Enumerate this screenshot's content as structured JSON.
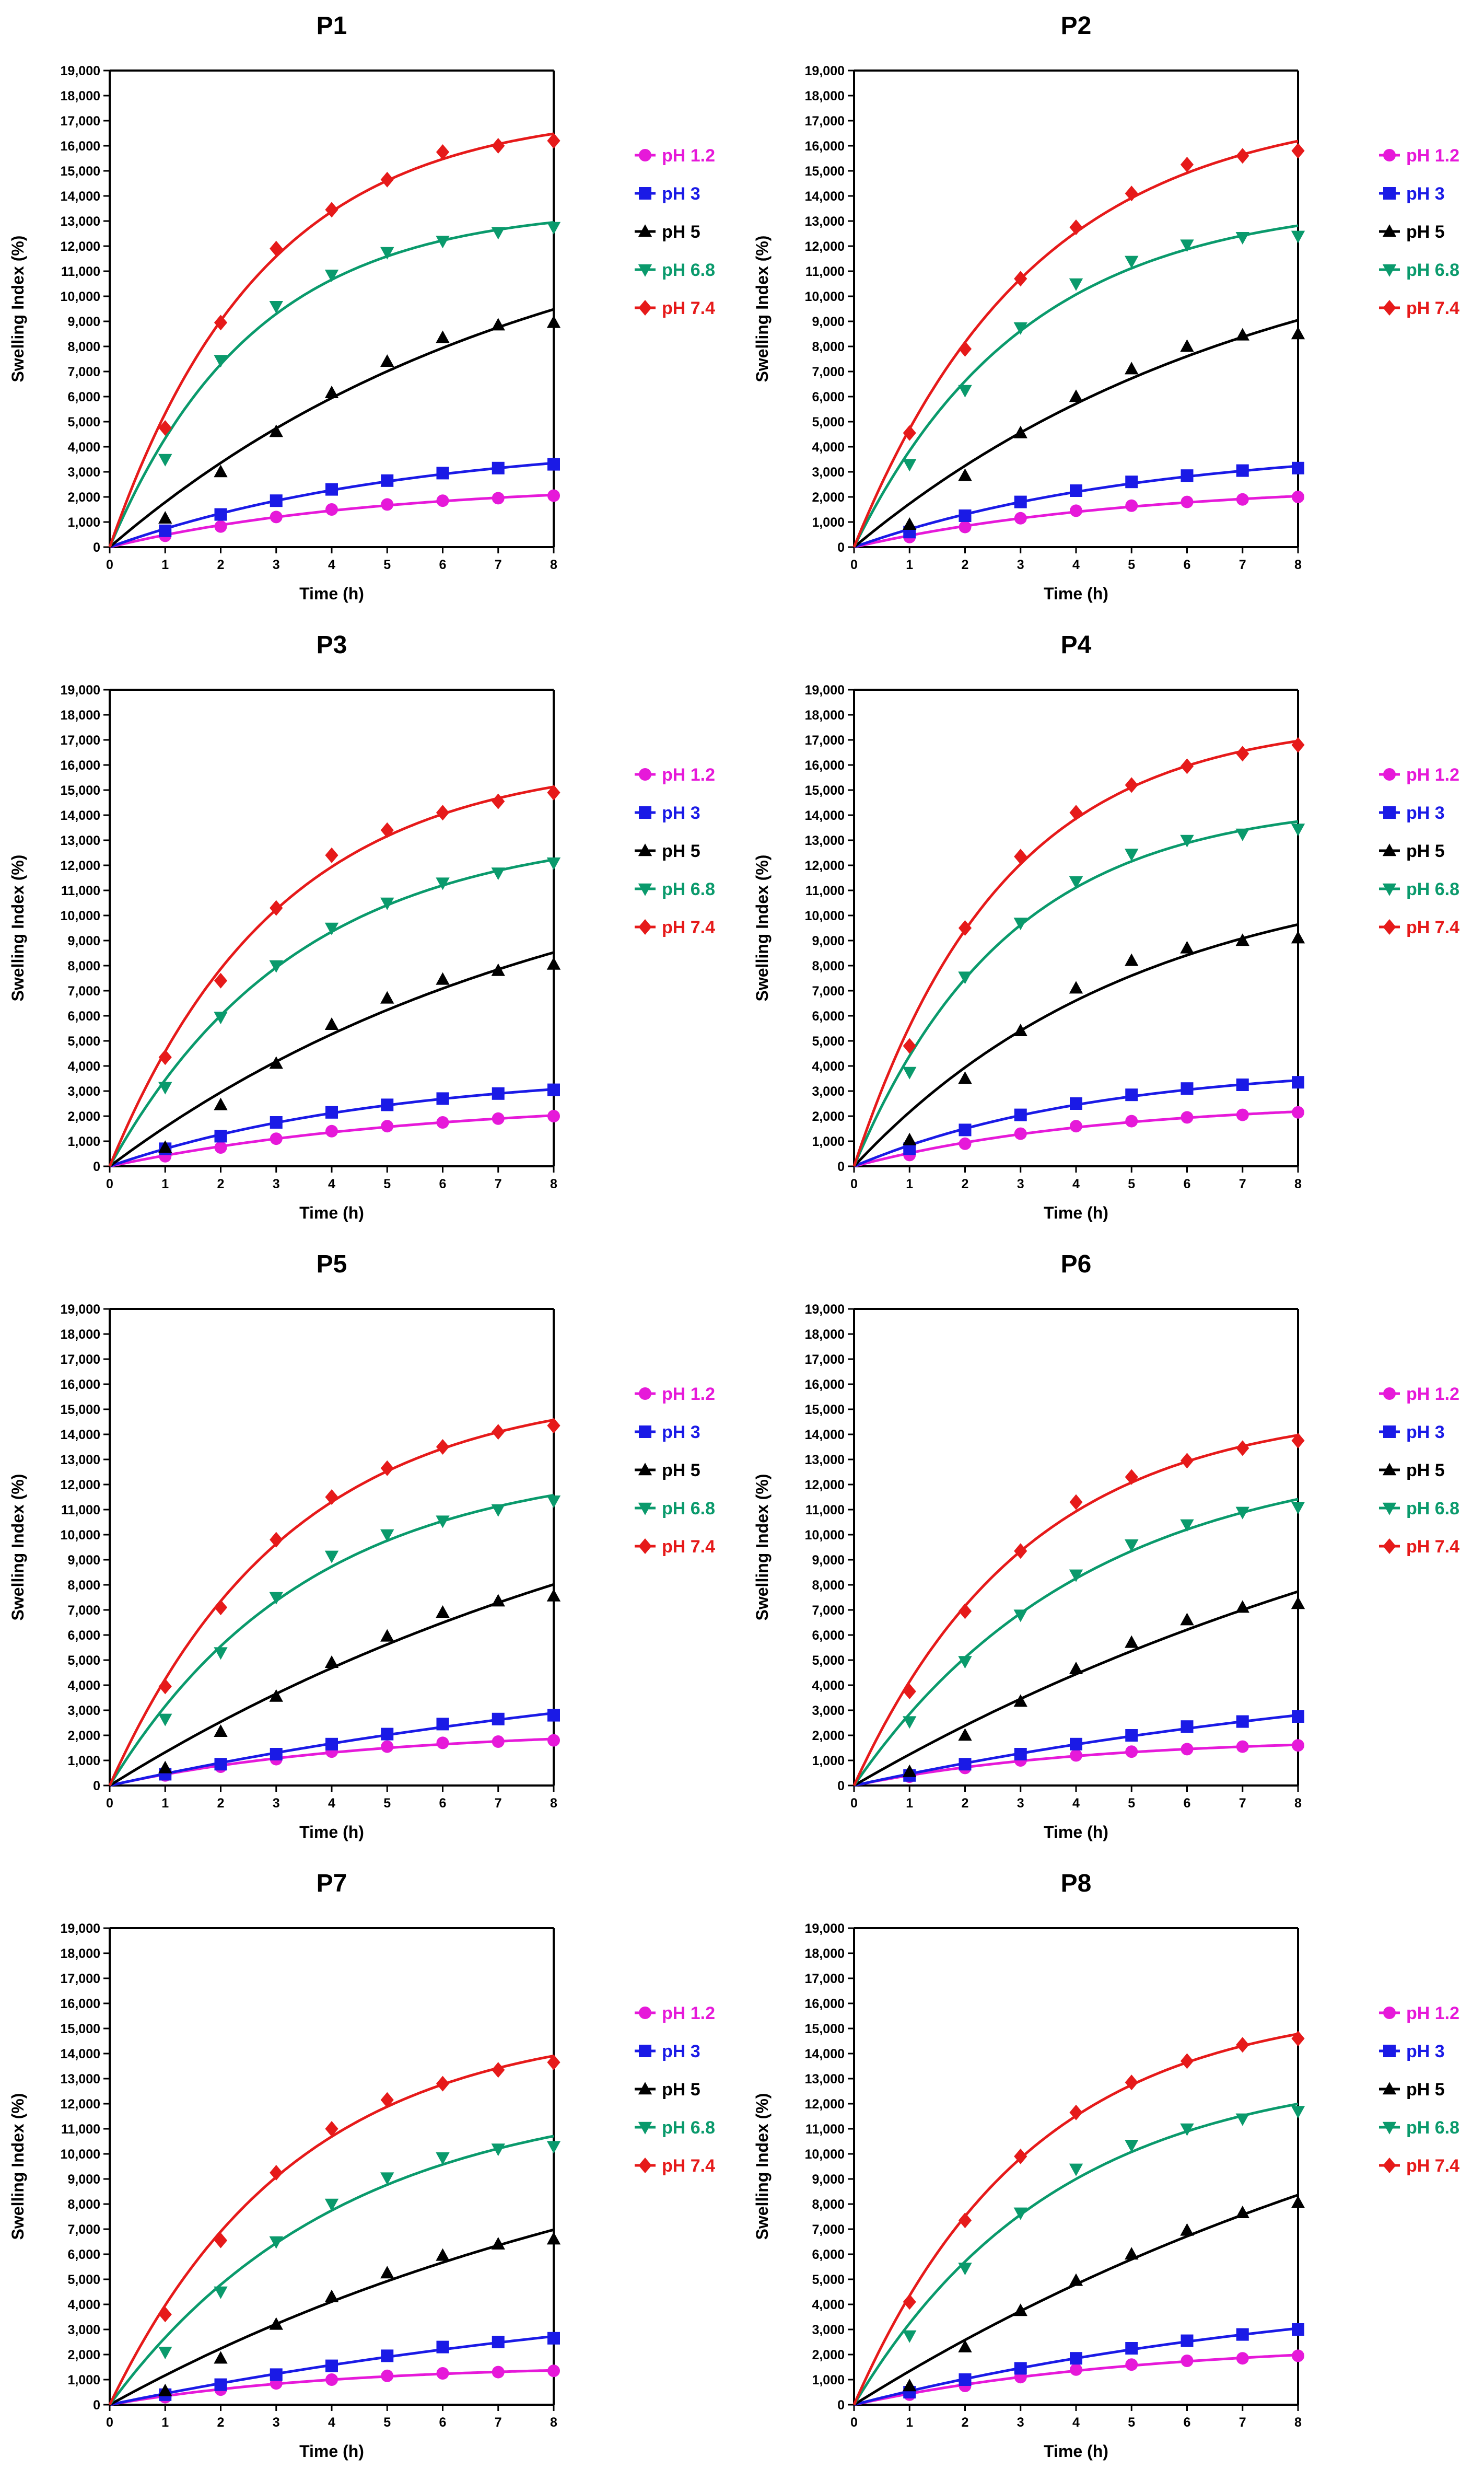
{
  "chart_data": [
    {
      "type": "scatter",
      "title": "P1",
      "xlabel": "Time (h)",
      "ylabel": "Swelling Index (%)",
      "xlim": [
        0,
        8
      ],
      "ylim": [
        0,
        19000
      ],
      "x": [
        0,
        1,
        2,
        3,
        4,
        5,
        6,
        7,
        8
      ],
      "series": [
        {
          "name": "pH 1.2",
          "values": [
            0,
            450,
            820,
            1200,
            1500,
            1700,
            1850,
            1950,
            2050
          ]
        },
        {
          "name": "pH 3",
          "values": [
            0,
            650,
            1300,
            1850,
            2300,
            2650,
            2950,
            3150,
            3300
          ]
        },
        {
          "name": "pH 5",
          "values": [
            0,
            1150,
            3000,
            4600,
            6150,
            7400,
            8350,
            8850,
            8950
          ]
        },
        {
          "name": "pH 6.8",
          "values": [
            0,
            3500,
            7450,
            9600,
            10850,
            11750,
            12200,
            12550,
            12750
          ]
        },
        {
          "name": "pH 7.4",
          "values": [
            0,
            4750,
            8950,
            11900,
            13450,
            14650,
            15750,
            16000,
            16200
          ]
        }
      ]
    },
    {
      "type": "scatter",
      "title": "P2",
      "xlabel": "Time (h)",
      "ylabel": "Swelling Index (%)",
      "xlim": [
        0,
        8
      ],
      "ylim": [
        0,
        19000
      ],
      "x": [
        0,
        1,
        2,
        3,
        4,
        5,
        6,
        7,
        8
      ],
      "series": [
        {
          "name": "pH 1.2",
          "values": [
            0,
            400,
            800,
            1150,
            1450,
            1650,
            1800,
            1900,
            2000
          ]
        },
        {
          "name": "pH 3",
          "values": [
            0,
            600,
            1250,
            1800,
            2250,
            2600,
            2850,
            3050,
            3150
          ]
        },
        {
          "name": "pH 5",
          "values": [
            0,
            900,
            2850,
            4550,
            6000,
            7100,
            8000,
            8450,
            8500
          ]
        },
        {
          "name": "pH 6.8",
          "values": [
            0,
            3300,
            6250,
            8750,
            10500,
            11400,
            12050,
            12350,
            12400
          ]
        },
        {
          "name": "pH 7.4",
          "values": [
            0,
            4550,
            7900,
            10700,
            12750,
            14100,
            15250,
            15600,
            15800
          ]
        }
      ]
    },
    {
      "type": "scatter",
      "title": "P3",
      "xlabel": "Time (h)",
      "ylabel": "Swelling Index (%)",
      "xlim": [
        0,
        8
      ],
      "ylim": [
        0,
        19000
      ],
      "x": [
        0,
        1,
        2,
        3,
        4,
        5,
        6,
        7,
        8
      ],
      "series": [
        {
          "name": "pH 1.2",
          "values": [
            0,
            400,
            750,
            1100,
            1400,
            1600,
            1750,
            1900,
            2000
          ]
        },
        {
          "name": "pH 3",
          "values": [
            0,
            700,
            1200,
            1750,
            2150,
            2450,
            2700,
            2900,
            3050
          ]
        },
        {
          "name": "pH 5",
          "values": [
            0,
            750,
            2450,
            4100,
            5650,
            6700,
            7450,
            7800,
            8050
          ]
        },
        {
          "name": "pH 6.8",
          "values": [
            0,
            3150,
            5950,
            8000,
            9500,
            10500,
            11300,
            11700,
            12100
          ]
        },
        {
          "name": "pH 7.4",
          "values": [
            0,
            4350,
            7400,
            10300,
            12400,
            13400,
            14100,
            14550,
            14900
          ]
        }
      ]
    },
    {
      "type": "scatter",
      "title": "P4",
      "xlabel": "Time (h)",
      "ylabel": "Swelling Index (%)",
      "xlim": [
        0,
        8
      ],
      "ylim": [
        0,
        19000
      ],
      "x": [
        0,
        1,
        2,
        3,
        4,
        5,
        6,
        7,
        8
      ],
      "series": [
        {
          "name": "pH 1.2",
          "values": [
            0,
            450,
            900,
            1300,
            1600,
            1800,
            1950,
            2050,
            2150
          ]
        },
        {
          "name": "pH 3",
          "values": [
            0,
            700,
            1450,
            2050,
            2500,
            2850,
            3100,
            3250,
            3350
          ]
        },
        {
          "name": "pH 5",
          "values": [
            0,
            1050,
            3500,
            5400,
            7100,
            8200,
            8700,
            9000,
            9100
          ]
        },
        {
          "name": "pH 6.8",
          "values": [
            0,
            3750,
            7550,
            9700,
            11350,
            12450,
            13000,
            13250,
            13450
          ]
        },
        {
          "name": "pH 7.4",
          "values": [
            0,
            4800,
            9500,
            12350,
            14100,
            15200,
            15950,
            16450,
            16800
          ]
        }
      ]
    },
    {
      "type": "scatter",
      "title": "P5",
      "xlabel": "Time (h)",
      "ylabel": "Swelling Index (%)",
      "xlim": [
        0,
        8
      ],
      "ylim": [
        0,
        19000
      ],
      "x": [
        0,
        1,
        2,
        3,
        4,
        5,
        6,
        7,
        8
      ],
      "series": [
        {
          "name": "pH 1.2",
          "values": [
            0,
            400,
            750,
            1050,
            1350,
            1550,
            1700,
            1750,
            1800
          ]
        },
        {
          "name": "pH 3",
          "values": [
            0,
            450,
            850,
            1250,
            1650,
            2050,
            2450,
            2650,
            2800
          ]
        },
        {
          "name": "pH 5",
          "values": [
            0,
            700,
            2150,
            3550,
            4900,
            5950,
            6900,
            7350,
            7550
          ]
        },
        {
          "name": "pH 6.8",
          "values": [
            0,
            2650,
            5300,
            7500,
            9150,
            10000,
            10550,
            11000,
            11350
          ]
        },
        {
          "name": "pH 7.4",
          "values": [
            0,
            3950,
            7100,
            9800,
            11500,
            12650,
            13500,
            14100,
            14350
          ]
        }
      ]
    },
    {
      "type": "scatter",
      "title": "P6",
      "xlabel": "Time (h)",
      "ylabel": "Swelling Index (%)",
      "xlim": [
        0,
        8
      ],
      "ylim": [
        0,
        19000
      ],
      "x": [
        0,
        1,
        2,
        3,
        4,
        5,
        6,
        7,
        8
      ],
      "series": [
        {
          "name": "pH 1.2",
          "values": [
            0,
            350,
            700,
            1000,
            1200,
            1350,
            1450,
            1550,
            1600
          ]
        },
        {
          "name": "pH 3",
          "values": [
            0,
            400,
            850,
            1250,
            1650,
            2000,
            2350,
            2550,
            2750
          ]
        },
        {
          "name": "pH 5",
          "values": [
            0,
            550,
            2000,
            3350,
            4650,
            5700,
            6600,
            7100,
            7250
          ]
        },
        {
          "name": "pH 6.8",
          "values": [
            0,
            2550,
            4950,
            6800,
            8400,
            9600,
            10400,
            10900,
            11100
          ]
        },
        {
          "name": "pH 7.4",
          "values": [
            0,
            3750,
            6950,
            9350,
            11300,
            12300,
            12950,
            13450,
            13750
          ]
        }
      ]
    },
    {
      "type": "scatter",
      "title": "P7",
      "xlabel": "Time (h)",
      "ylabel": "Swelling Index (%)",
      "xlim": [
        0,
        8
      ],
      "ylim": [
        0,
        19000
      ],
      "x": [
        0,
        1,
        2,
        3,
        4,
        5,
        6,
        7,
        8
      ],
      "series": [
        {
          "name": "pH 1.2",
          "values": [
            0,
            300,
            600,
            850,
            1000,
            1150,
            1250,
            1300,
            1350
          ]
        },
        {
          "name": "pH 3",
          "values": [
            0,
            400,
            800,
            1200,
            1550,
            1950,
            2300,
            2500,
            2650
          ]
        },
        {
          "name": "pH 5",
          "values": [
            0,
            550,
            1850,
            3200,
            4300,
            5250,
            5950,
            6400,
            6600
          ]
        },
        {
          "name": "pH 6.8",
          "values": [
            0,
            2100,
            4500,
            6500,
            8000,
            9050,
            9850,
            10200,
            10300
          ]
        },
        {
          "name": "pH 7.4",
          "values": [
            0,
            3600,
            6550,
            9250,
            11000,
            12150,
            12800,
            13350,
            13650
          ]
        }
      ]
    },
    {
      "type": "scatter",
      "title": "P8",
      "xlabel": "Time (h)",
      "ylabel": "Swelling Index (%)",
      "xlim": [
        0,
        8
      ],
      "ylim": [
        0,
        19000
      ],
      "x": [
        0,
        1,
        2,
        3,
        4,
        5,
        6,
        7,
        8
      ],
      "series": [
        {
          "name": "pH 1.2",
          "values": [
            0,
            400,
            750,
            1100,
            1400,
            1600,
            1750,
            1850,
            1950
          ]
        },
        {
          "name": "pH 3",
          "values": [
            0,
            500,
            1000,
            1450,
            1850,
            2250,
            2550,
            2800,
            3000
          ]
        },
        {
          "name": "pH 5",
          "values": [
            0,
            750,
            2300,
            3750,
            4950,
            6000,
            6950,
            7650,
            8050
          ]
        },
        {
          "name": "pH 6.8",
          "values": [
            0,
            2750,
            5450,
            7650,
            9400,
            10350,
            11000,
            11400,
            11700
          ]
        },
        {
          "name": "pH 7.4",
          "values": [
            0,
            4100,
            7350,
            9900,
            11650,
            12850,
            13700,
            14350,
            14600
          ]
        }
      ]
    }
  ],
  "series_style": [
    {
      "name": "pH 1.2",
      "color": "#e619d9",
      "marker": "circle"
    },
    {
      "name": "pH 3",
      "color": "#1a1ae6",
      "marker": "square"
    },
    {
      "name": "pH 5",
      "color": "#000000",
      "marker": "triangle-up"
    },
    {
      "name": "pH 6.8",
      "color": "#0a9a6c",
      "marker": "triangle-down"
    },
    {
      "name": "pH 7.4",
      "color": "#e61a1a",
      "marker": "diamond"
    }
  ],
  "y_ticks": [
    0,
    1000,
    2000,
    3000,
    4000,
    5000,
    6000,
    7000,
    8000,
    9000,
    10000,
    11000,
    12000,
    13000,
    14000,
    15000,
    16000,
    17000,
    18000,
    19000
  ],
  "y_tick_labels": [
    "0",
    "1,000",
    "2,000",
    "3,000",
    "4,000",
    "5,000",
    "6,000",
    "7,000",
    "8,000",
    "9,000",
    "10,000",
    "11,000",
    "12,000",
    "13,000",
    "14,000",
    "15,000",
    "16,000",
    "17,000",
    "18,000",
    "19,000"
  ],
  "x_ticks": [
    0,
    1,
    2,
    3,
    4,
    5,
    6,
    7,
    8
  ],
  "x_tick_labels": [
    "0",
    "1",
    "2",
    "3",
    "4",
    "5",
    "6",
    "7",
    "8"
  ]
}
